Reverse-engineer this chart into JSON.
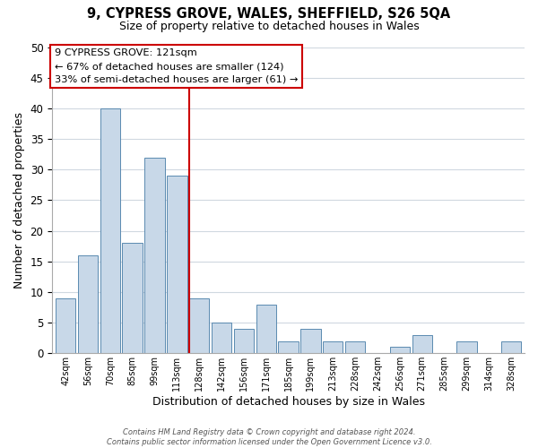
{
  "title_line1": "9, CYPRESS GROVE, WALES, SHEFFIELD, S26 5QA",
  "title_line2": "Size of property relative to detached houses in Wales",
  "xlabel": "Distribution of detached houses by size in Wales",
  "ylabel": "Number of detached properties",
  "bar_labels": [
    "42sqm",
    "56sqm",
    "70sqm",
    "85sqm",
    "99sqm",
    "113sqm",
    "128sqm",
    "142sqm",
    "156sqm",
    "171sqm",
    "185sqm",
    "199sqm",
    "213sqm",
    "228sqm",
    "242sqm",
    "256sqm",
    "271sqm",
    "285sqm",
    "299sqm",
    "314sqm",
    "328sqm"
  ],
  "bar_values": [
    9,
    16,
    40,
    18,
    32,
    29,
    9,
    5,
    4,
    8,
    2,
    4,
    2,
    2,
    0,
    1,
    3,
    0,
    2,
    0,
    2
  ],
  "bar_color": "#c8d8e8",
  "bar_edgecolor": "#5a8ab0",
  "vline_color": "#cc0000",
  "annotation_title": "9 CYPRESS GROVE: 121sqm",
  "annotation_line1": "← 67% of detached houses are smaller (124)",
  "annotation_line2": "33% of semi-detached houses are larger (61) →",
  "annotation_box_color": "#ffffff",
  "annotation_box_edgecolor": "#cc0000",
  "ylim": [
    0,
    50
  ],
  "yticks": [
    0,
    5,
    10,
    15,
    20,
    25,
    30,
    35,
    40,
    45,
    50
  ],
  "footer_line1": "Contains HM Land Registry data © Crown copyright and database right 2024.",
  "footer_line2": "Contains public sector information licensed under the Open Government Licence v3.0.",
  "background_color": "#ffffff",
  "grid_color": "#d0d8e0"
}
